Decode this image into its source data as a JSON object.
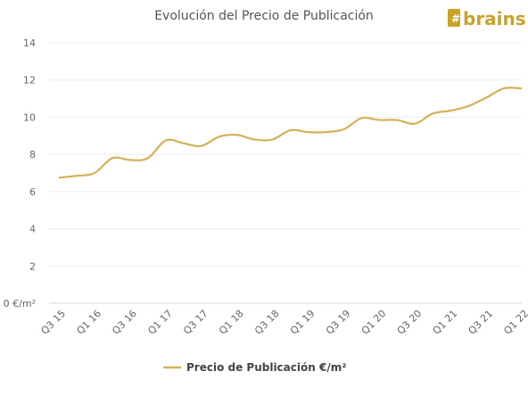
{
  "chart_data": {
    "type": "line",
    "title": "Evolución del Precio de Publicación",
    "xlabel": "",
    "ylabel": "",
    "ylim": [
      0,
      14
    ],
    "y_ticks": [
      0,
      2,
      4,
      6,
      8,
      10,
      12,
      14
    ],
    "y_tick_labels": [
      "0 €/m²",
      "2",
      "4",
      "6",
      "8",
      "10",
      "12",
      "14"
    ],
    "x": [
      "Q3 15",
      "Q4 15",
      "Q1 16",
      "Q2 16",
      "Q3 16",
      "Q4 16",
      "Q1 17",
      "Q2 17",
      "Q3 17",
      "Q4 17",
      "Q1 18",
      "Q2 18",
      "Q3 18",
      "Q4 18",
      "Q1 19",
      "Q2 19",
      "Q3 19",
      "Q4 19",
      "Q1 20",
      "Q2 20",
      "Q3 20",
      "Q4 20",
      "Q1 21",
      "Q2 21",
      "Q3 21",
      "Q4 21",
      "Q1 22"
    ],
    "x_tick_labels": [
      "Q3 15",
      "Q1 16",
      "Q3 16",
      "Q1 17",
      "Q3 17",
      "Q1 18",
      "Q3 18",
      "Q1 19",
      "Q3 19",
      "Q1 20",
      "Q3 20",
      "Q1 21",
      "Q3 21",
      "Q1 22"
    ],
    "series": [
      {
        "name": "Precio de Publicación €/m²",
        "color": "#d4b25a",
        "values": [
          6.75,
          6.85,
          7.0,
          7.8,
          7.7,
          7.8,
          8.75,
          8.6,
          8.45,
          8.95,
          9.05,
          8.8,
          8.8,
          9.3,
          9.2,
          9.2,
          9.35,
          9.95,
          9.85,
          9.85,
          9.65,
          10.2,
          10.35,
          10.6,
          11.05,
          11.55,
          11.55
        ]
      }
    ],
    "grid": true,
    "legend": "bottom"
  },
  "logo": {
    "text": "brains",
    "color": "#c9a227"
  }
}
